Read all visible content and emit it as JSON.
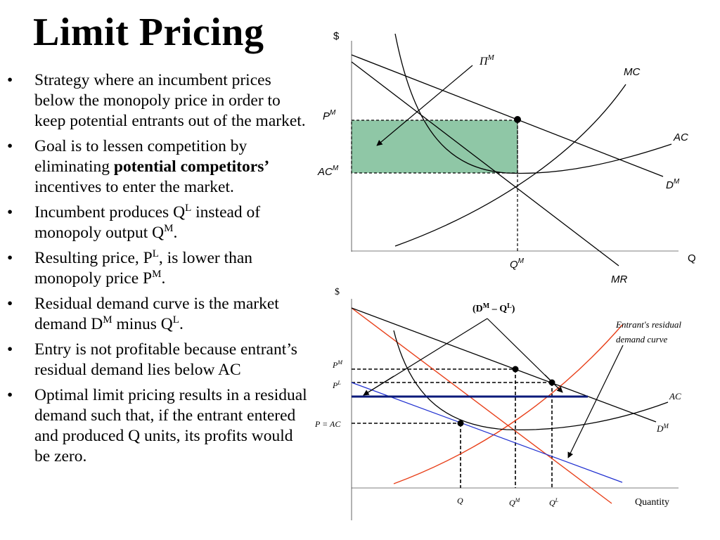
{
  "title": "Limit Pricing",
  "bullets": [
    {
      "parts": [
        {
          "text": "Strategy where an incumbent prices below the monopoly price in order to keep potential entrants out of the market."
        }
      ]
    },
    {
      "parts": [
        {
          "text": "Goal is to lessen competition by eliminating "
        },
        {
          "text": "potential competitors’",
          "bold": true
        },
        {
          "text": " incentives to enter the market."
        }
      ]
    },
    {
      "parts": [
        {
          "text": "Incumbent produces Q"
        },
        {
          "text": "L",
          "sup": true
        },
        {
          "text": " instead of monopoly output Q"
        },
        {
          "text": "M",
          "sup": true
        },
        {
          "text": "."
        }
      ]
    },
    {
      "parts": [
        {
          "text": "Resulting price, P"
        },
        {
          "text": "L",
          "sup": true
        },
        {
          "text": ", is lower than monopoly price P"
        },
        {
          "text": "M",
          "sup": true
        },
        {
          "text": "."
        }
      ]
    },
    {
      "parts": [
        {
          "text": "Residual demand curve is the market demand D"
        },
        {
          "text": "M",
          "sup": true
        },
        {
          "text": " minus Q"
        },
        {
          "text": "L",
          "sup": true
        },
        {
          "text": "."
        }
      ]
    },
    {
      "parts": [
        {
          "text": "Entry is not profitable because entrant’s residual demand lies below AC"
        }
      ]
    },
    {
      "parts": [
        {
          "text": "Optimal limit pricing results in a residual demand such that, if the entrant entered and produced Q units, its profits would be zero."
        }
      ]
    }
  ],
  "bullet_char": "•",
  "top_graph": {
    "y_axis_label": "$",
    "x_axis_label": "Q",
    "profit_label": "Π",
    "profit_sup": "M",
    "mc_label": "MC",
    "ac_label": "AC",
    "d_label": "D",
    "d_sup": "M",
    "mr_label": "MR",
    "pm_label": "P",
    "pm_sup": "M",
    "acm_label": "AC",
    "acm_sup": "M",
    "qm_label": "Q",
    "qm_sup": "M",
    "profit_fill": "#8fc7a6"
  },
  "bottom_graph": {
    "y_axis_label": "$",
    "x_axis_label": "Quantity",
    "residual_label_main": "(D",
    "residual_label_sup1": "M",
    "residual_label_mid": " – Q",
    "residual_label_sup2": "L",
    "residual_label_end": ")",
    "entrant_label_line1": "Entrant's residual",
    "entrant_label_line2": "demand curve",
    "pm_label": "P",
    "pm_sup": "M",
    "pl_label": "P",
    "pl_sup": "L",
    "pac_label": "P = AC",
    "ac_label": "AC",
    "d_label": "D",
    "d_sup": "M",
    "q_label": "Q",
    "qm_label": "Q",
    "qm_sup": "M",
    "ql_label": "Q",
    "ql_sup": "L",
    "orange": "#e8401a",
    "blue": "#1f2fd0",
    "navy": "#0a1a7a"
  }
}
